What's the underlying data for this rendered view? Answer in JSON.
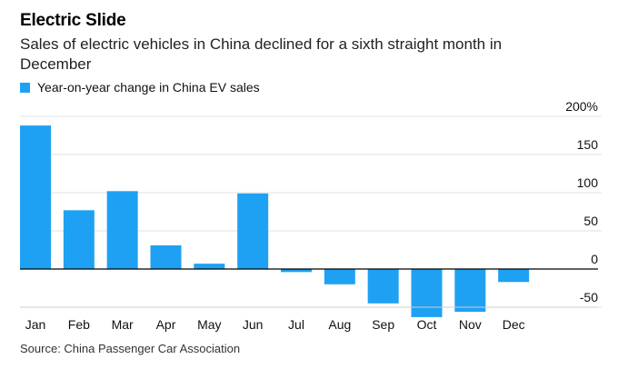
{
  "header": {
    "title": "Electric Slide",
    "subtitle": "Sales of electric vehicles in China declined for a sixth straight month in December"
  },
  "legend": {
    "label": "Year-on-year change in China EV sales",
    "color": "#1ea1f2"
  },
  "footer": {
    "source": "Source: China Passenger Car Association"
  },
  "chart_data": {
    "type": "bar",
    "title": "Electric Slide",
    "subtitle": "Sales of electric vehicles in China declined for a sixth straight month in December",
    "categories": [
      "Jan",
      "Feb",
      "Mar",
      "Apr",
      "May",
      "Jun",
      "Jul",
      "Aug",
      "Sep",
      "Oct",
      "Nov",
      "Dec"
    ],
    "series": [
      {
        "name": "Year-on-year change in China EV sales",
        "values": [
          188,
          77,
          102,
          31,
          7,
          99,
          -4,
          -20,
          -45,
          -63,
          -56,
          -17
        ],
        "color": "#1ea1f2"
      }
    ],
    "xlabel": "",
    "ylabel": "",
    "ylim": [
      -50,
      200
    ],
    "yticks": [
      {
        "value": 200,
        "label": "200%"
      },
      {
        "value": 150,
        "label": "150"
      },
      {
        "value": 100,
        "label": "100"
      },
      {
        "value": 50,
        "label": "50"
      },
      {
        "value": 0,
        "label": "0"
      },
      {
        "value": -50,
        "label": "-50"
      }
    ],
    "grid": true,
    "y_axis_side": "right",
    "legend_position": "top-left"
  }
}
